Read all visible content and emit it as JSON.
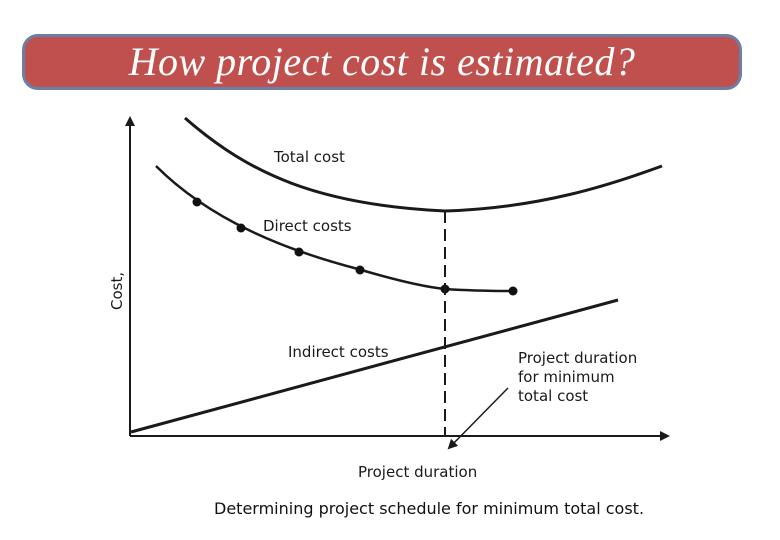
{
  "slide": {
    "title": "How project cost is estimated?"
  },
  "figure": {
    "y_axis_label": "Cost,",
    "x_axis_label": "Project duration",
    "curves": {
      "total": "Total cost",
      "direct": "Direct costs",
      "indirect": "Indirect costs"
    },
    "annotation": [
      "Project duration",
      "for minimum",
      "total cost"
    ],
    "caption": "Determining project schedule for minimum total cost."
  }
}
